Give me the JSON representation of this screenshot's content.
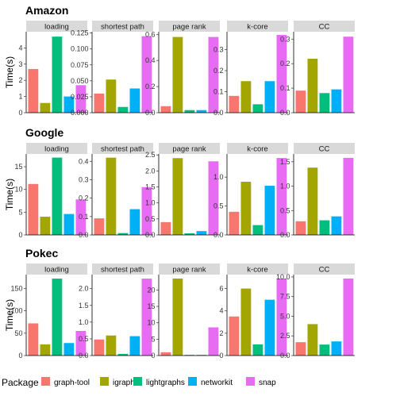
{
  "chart_data": {
    "type": "bar",
    "ylabel": "Time(s)",
    "legend": {
      "title": "Package",
      "placement": "bottom",
      "entries": [
        "graph-tool",
        "igraph",
        "lightgraphs",
        "networkit",
        "snap"
      ]
    },
    "colors": [
      "#F8766D",
      "#A3A500",
      "#00BF7D",
      "#00B0F6",
      "#E76BF3"
    ],
    "rows": [
      {
        "title": "Amazon",
        "panels": [
          {
            "title": "loading",
            "values": [
              2.7,
              0.6,
              4.7,
              1.0,
              1.7
            ],
            "ylim": [
              0,
              5
            ],
            "ticks": [
              0,
              1,
              2,
              3,
              4
            ],
            "tick_labels": [
              "0",
              "1",
              "2",
              "3",
              "4"
            ]
          },
          {
            "title": "shortest path",
            "values": [
              0.03,
              0.052,
              0.009,
              0.038,
              0.12
            ],
            "ylim": [
              0,
              0.127
            ],
            "ticks": [
              0,
              0.025,
              0.05,
              0.075,
              0.1,
              0.125
            ],
            "tick_labels": [
              "0.000",
              "0.025",
              "0.050",
              "0.075",
              "0.100",
              "0.125"
            ]
          },
          {
            "title": "page rank",
            "values": [
              0.05,
              0.58,
              0.02,
              0.02,
              0.58
            ],
            "ylim": [
              0,
              0.62
            ],
            "ticks": [
              0,
              0.2,
              0.4,
              0.6
            ],
            "tick_labels": [
              "0.0",
              "0.2",
              "0.4",
              "0.6"
            ]
          },
          {
            "title": "k-core",
            "values": [
              0.08,
              0.15,
              0.04,
              0.15,
              0.37
            ],
            "ylim": [
              0,
              0.385
            ],
            "ticks": [
              0,
              0.1,
              0.2,
              0.3
            ],
            "tick_labels": [
              "0.0",
              "0.1",
              "0.2",
              "0.3"
            ]
          },
          {
            "title": "CC",
            "values": [
              0.09,
              0.22,
              0.08,
              0.095,
              0.31
            ],
            "ylim": [
              0,
              0.33
            ],
            "ticks": [
              0,
              0.1,
              0.2,
              0.3
            ],
            "tick_labels": [
              "0.0",
              "0.1",
              "0.2",
              "0.3"
            ]
          }
        ]
      },
      {
        "title": "Google",
        "panels": [
          {
            "title": "loading",
            "values": [
              11.2,
              4.0,
              17.0,
              4.6,
              7.8
            ],
            "ylim": [
              0,
              17.8
            ],
            "ticks": [
              0,
              5,
              10,
              15
            ],
            "tick_labels": [
              "0",
              "5",
              "10",
              "15"
            ]
          },
          {
            "title": "shortest path",
            "values": [
              0.09,
              0.42,
              0.01,
              0.14,
              0.26
            ],
            "ylim": [
              0,
              0.44
            ],
            "ticks": [
              0,
              0.1,
              0.2,
              0.3,
              0.4
            ],
            "tick_labels": [
              "0.0",
              "0.1",
              "0.2",
              "0.3",
              "0.4"
            ]
          },
          {
            "title": "page rank",
            "values": [
              0.4,
              2.4,
              0.05,
              0.12,
              2.3
            ],
            "ylim": [
              0,
              2.53
            ],
            "ticks": [
              0,
              0.5,
              1.0,
              1.5,
              2.0,
              2.5
            ],
            "tick_labels": [
              "0.0",
              "0.5",
              "1.0",
              "1.5",
              "2.0",
              "2.5"
            ]
          },
          {
            "title": "k-core",
            "values": [
              0.4,
              0.92,
              0.17,
              0.85,
              1.33
            ],
            "ylim": [
              0,
              1.4
            ],
            "ticks": [
              0,
              0.5,
              1.0
            ],
            "tick_labels": [
              "0.0",
              "0.5",
              "1.0"
            ]
          },
          {
            "title": "CC",
            "values": [
              0.28,
              1.38,
              0.3,
              0.38,
              1.58
            ],
            "ylim": [
              0,
              1.66
            ],
            "ticks": [
              0,
              0.5,
              1.0,
              1.5
            ],
            "tick_labels": [
              "0.0",
              "0.5",
              "1.0",
              "1.5"
            ]
          }
        ]
      },
      {
        "title": "Pokec",
        "panels": [
          {
            "title": "loading",
            "values": [
              72,
              25,
              172,
              28,
              55
            ],
            "ylim": [
              0,
              181
            ],
            "ticks": [
              0,
              50,
              100,
              150
            ],
            "tick_labels": [
              "0",
              "50",
              "100",
              "150"
            ]
          },
          {
            "title": "shortest path",
            "values": [
              0.48,
              0.6,
              0.05,
              0.58,
              2.3
            ],
            "ylim": [
              0,
              2.42
            ],
            "ticks": [
              0,
              0.5,
              1.0,
              1.5,
              2.0
            ],
            "tick_labels": [
              "0.0",
              "0.5",
              "1.0",
              "1.5",
              "2.0"
            ]
          },
          {
            "title": "page rank",
            "values": [
              1.0,
              23.5,
              0.2,
              0.2,
              8.6
            ],
            "ylim": [
              0,
              24.7
            ],
            "ticks": [
              0,
              5,
              10,
              15,
              20
            ],
            "tick_labels": [
              "0",
              "5",
              "10",
              "15",
              "20"
            ]
          },
          {
            "title": "k-core",
            "values": [
              3.5,
              6.0,
              1.0,
              5.0,
              6.9
            ],
            "ylim": [
              0,
              7.25
            ],
            "ticks": [
              0,
              2,
              4,
              6
            ],
            "tick_labels": [
              "0",
              "2",
              "4",
              "6"
            ]
          },
          {
            "title": "CC",
            "values": [
              1.7,
              4.0,
              1.4,
              1.8,
              9.8
            ],
            "ylim": [
              0,
              10.3
            ],
            "ticks": [
              0,
              2.5,
              5.0,
              7.5,
              10.0
            ],
            "tick_labels": [
              "0.0",
              "2.5",
              "5.0",
              "7.5",
              "10.0"
            ]
          }
        ]
      }
    ]
  }
}
